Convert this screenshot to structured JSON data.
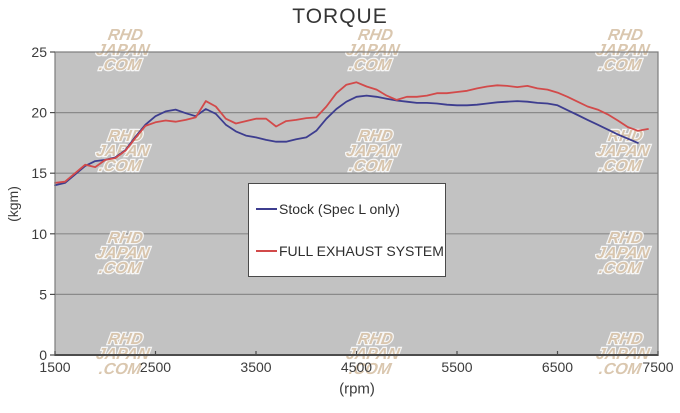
{
  "title": "TORQUE",
  "watermark": {
    "lines": [
      "RHD",
      "JAPAN",
      ".COM"
    ]
  },
  "colors": {
    "background": "#ffffff",
    "plot_background": "#c2c2c2",
    "gridline": "#8a8a8a",
    "plot_border": "#7d7d7d",
    "axis": "#4c4c4c",
    "tick_text": "#3c3c3c",
    "title_text": "#353535",
    "stock_line": "#3d3d8f",
    "exhaust_line": "#d24a4a",
    "watermark_fill": "#cdb494"
  },
  "legend": {
    "entries": [
      {
        "label": "Stock (Spec L only)",
        "color": "#3d3d8f"
      },
      {
        "label": "FULL EXHAUST SYSTEM",
        "color": "#d24a4a"
      }
    ]
  },
  "chart_data": {
    "type": "line",
    "title": "TORQUE",
    "xlabel": "(rpm)",
    "ylabel": "(kgm)",
    "xlim": [
      1500,
      7500
    ],
    "ylim": [
      0,
      25
    ],
    "x_ticks": [
      1500,
      2500,
      3500,
      4500,
      5500,
      6500,
      7500
    ],
    "y_ticks": [
      0,
      5,
      10,
      15,
      20,
      25
    ],
    "grid": "horizontal gridlines every 5 kgm, gray plot area",
    "legend_position": "center of plot",
    "x_start": 1500,
    "x_step": 100,
    "series": [
      {
        "name": "Stock (Spec L only)",
        "color": "#3d3d8f",
        "values": [
          14.0,
          14.2,
          14.9,
          15.6,
          16.0,
          16.1,
          16.3,
          16.9,
          18.0,
          19.0,
          19.7,
          20.1,
          20.25,
          19.95,
          19.7,
          20.3,
          19.9,
          19.0,
          18.45,
          18.1,
          17.95,
          17.75,
          17.6,
          17.6,
          17.8,
          17.95,
          18.5,
          19.5,
          20.3,
          20.9,
          21.3,
          21.4,
          21.3,
          21.15,
          21.0,
          20.9,
          20.8,
          20.8,
          20.75,
          20.65,
          20.6,
          20.6,
          20.65,
          20.75,
          20.85,
          20.9,
          20.95,
          20.9,
          20.8,
          20.75,
          20.6,
          20.2,
          19.8,
          19.4,
          19.0,
          18.6,
          18.2,
          17.85,
          17.5
        ]
      },
      {
        "name": "FULL EXHAUST SYSTEM",
        "color": "#d24a4a",
        "values": [
          14.2,
          14.3,
          15.0,
          15.7,
          15.5,
          16.1,
          16.25,
          16.85,
          17.9,
          18.9,
          19.2,
          19.35,
          19.25,
          19.4,
          19.6,
          20.95,
          20.5,
          19.5,
          19.1,
          19.3,
          19.5,
          19.5,
          18.85,
          19.3,
          19.4,
          19.55,
          19.6,
          20.5,
          21.6,
          22.3,
          22.5,
          22.15,
          21.9,
          21.4,
          21.05,
          21.3,
          21.3,
          21.4,
          21.6,
          21.6,
          21.7,
          21.8,
          22.0,
          22.15,
          22.25,
          22.2,
          22.1,
          22.2,
          22.0,
          21.9,
          21.65,
          21.3,
          20.9,
          20.5,
          20.25,
          19.85,
          19.35,
          18.8,
          18.5,
          18.65
        ]
      }
    ]
  }
}
